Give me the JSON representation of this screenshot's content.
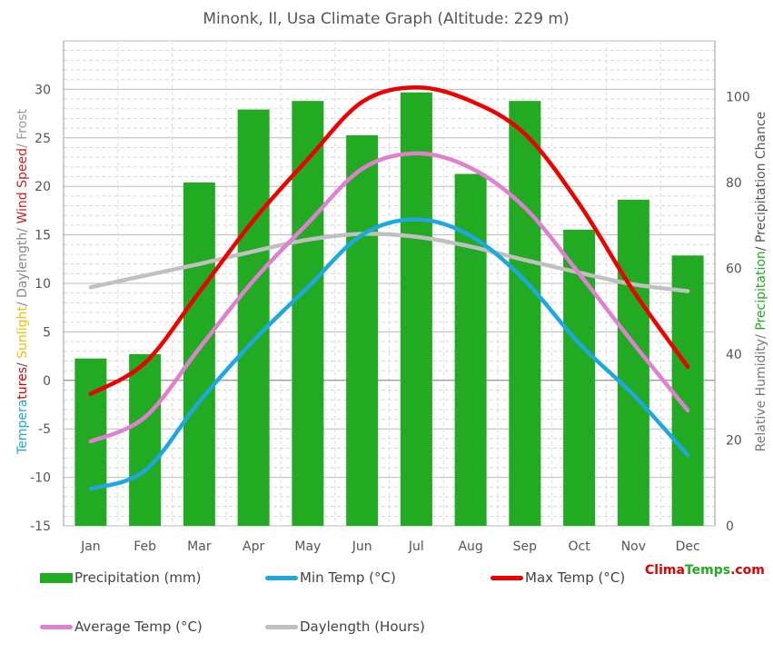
{
  "title": "Minonk, Il, Usa Climate Graph (Altitude: 229 m)",
  "left_axis_label": {
    "parts": [
      {
        "text": "Tempera",
        "color": "#1fa8e0"
      },
      {
        "text": "tures",
        "color": "#d40000"
      },
      {
        "text": "/ ",
        "color": "#555555"
      },
      {
        "text": "Sunlight",
        "color": "#f2c200"
      },
      {
        "text": "/ Daylength/ ",
        "color": "#888888"
      },
      {
        "text": "Wind Speed",
        "color": "#d02020"
      },
      {
        "text": "/ Frost",
        "color": "#999999"
      }
    ]
  },
  "right_axis_label": {
    "parts": [
      {
        "text": "Relative Humidity/ ",
        "color": "#777777"
      },
      {
        "text": "Precipitation",
        "color": "#22aa22"
      },
      {
        "text": "/ Precipitation Chance",
        "color": "#555555"
      }
    ]
  },
  "legend": {
    "precipitation": "Precipitation (mm)",
    "min_temp": "Min Temp (°C)",
    "max_temp": "Max Temp (°C)",
    "avg_temp": "Average Temp (°C)",
    "daylength": "Daylength (Hours)"
  },
  "brand": {
    "part1": "Clima",
    "part2": "Temps",
    "part3": ".com"
  },
  "colors": {
    "precipitation": "#22aa22",
    "min_temp": "#1fa8e0",
    "max_temp": "#ee0000",
    "avg_temp": "#e080d0",
    "daylength": "#c0c0c0",
    "brand_red": "#e00000",
    "brand_green": "#22aa22"
  },
  "chart_data": {
    "type": "bar",
    "categories": [
      "Jan",
      "Feb",
      "Mar",
      "Apr",
      "May",
      "Jun",
      "Jul",
      "Aug",
      "Sep",
      "Oct",
      "Nov",
      "Dec"
    ],
    "left_axis": {
      "ylim": [
        -15,
        35
      ],
      "ticks": [
        -15,
        -10,
        -5,
        0,
        5,
        10,
        15,
        20,
        25,
        30
      ]
    },
    "right_axis": {
      "ylim": [
        0,
        113
      ],
      "ticks": [
        0,
        20,
        40,
        60,
        80,
        100
      ]
    },
    "grid": true,
    "series": [
      {
        "name": "Precipitation (mm)",
        "type": "bar",
        "axis": "right",
        "values": [
          39,
          40,
          80,
          97,
          99,
          91,
          101,
          82,
          99,
          69,
          76,
          63
        ]
      },
      {
        "name": "Min Temp (°C)",
        "type": "line",
        "axis": "left",
        "values": [
          -11.2,
          -9.3,
          -2.2,
          4.1,
          9.6,
          15.0,
          16.6,
          14.9,
          10.3,
          3.8,
          -1.5,
          -7.7
        ]
      },
      {
        "name": "Max Temp (°C)",
        "type": "line",
        "axis": "left",
        "values": [
          -1.4,
          1.8,
          9.1,
          16.5,
          22.8,
          28.7,
          30.2,
          28.8,
          25.4,
          18.2,
          9.2,
          1.4
        ]
      },
      {
        "name": "Average Temp (°C)",
        "type": "line",
        "axis": "left",
        "values": [
          -6.3,
          -3.8,
          3.3,
          10.3,
          16.2,
          21.8,
          23.4,
          21.9,
          17.8,
          11.0,
          3.8,
          -3.1
        ]
      },
      {
        "name": "Daylength (Hours)",
        "type": "line",
        "axis": "left",
        "values": [
          9.6,
          10.8,
          12.0,
          13.3,
          14.5,
          15.1,
          14.8,
          13.8,
          12.4,
          11.1,
          9.9,
          9.2
        ]
      }
    ]
  }
}
